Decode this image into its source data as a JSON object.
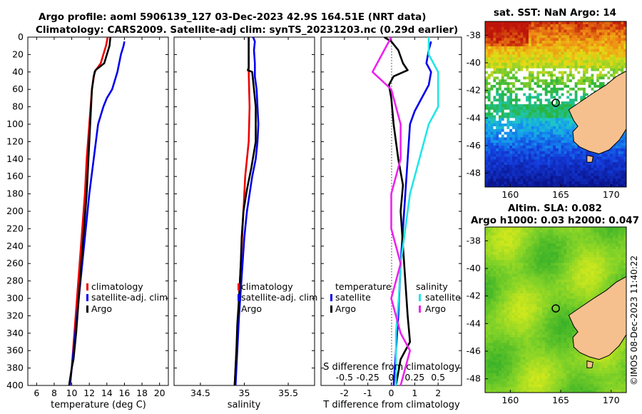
{
  "titles": {
    "line1": "Argo profile: aoml 5906139_127 03-Dec-2023 42.9S 164.51E (NRT data)",
    "line2": "Climatology: CARS2009. Satellite-adj clim: synTS_20231203.nc (0.29d earlier)"
  },
  "stamp": "©IMOS 08-Dec-2023 11:40:22",
  "colors": {
    "red": "#ee0000",
    "blue": "#0000ee",
    "black": "#000000",
    "cyan": "#22e6e6",
    "magenta": "#ee22ee",
    "land": "#f5c08e"
  },
  "chart_data": [
    {
      "type": "line",
      "id": "temperature",
      "xlabel": "temperature (deg C)",
      "ylabel": "",
      "xlim": [
        5,
        21
      ],
      "ylim": [
        0,
        400
      ],
      "xticks": [
        "6",
        "8",
        "10",
        "12",
        "14",
        "16",
        "18",
        "20"
      ],
      "yticks": [
        "0",
        "20",
        "40",
        "60",
        "80",
        "100",
        "120",
        "140",
        "160",
        "180",
        "200",
        "220",
        "240",
        "260",
        "280",
        "300",
        "320",
        "340",
        "360",
        "380",
        "400"
      ],
      "legend": [
        "climatology",
        "satellite-adj. clim",
        "Argo"
      ],
      "series": [
        {
          "name": "climatology",
          "color": "red",
          "points": [
            [
              14.1,
              0
            ],
            [
              13.9,
              10
            ],
            [
              13.6,
              20
            ],
            [
              13.3,
              30
            ],
            [
              12.6,
              40
            ],
            [
              12.3,
              60
            ],
            [
              12.0,
              100
            ],
            [
              11.7,
              140
            ],
            [
              11.5,
              180
            ],
            [
              11.2,
              220
            ],
            [
              10.9,
              260
            ],
            [
              10.6,
              300
            ],
            [
              10.3,
              340
            ],
            [
              10.0,
              380
            ],
            [
              9.8,
              400
            ]
          ]
        },
        {
          "name": "satellite-adj. clim",
          "color": "blue",
          "points": [
            [
              16.0,
              5
            ],
            [
              15.9,
              10
            ],
            [
              15.6,
              20
            ],
            [
              15.2,
              40
            ],
            [
              14.6,
              60
            ],
            [
              14.0,
              70
            ],
            [
              13.6,
              80
            ],
            [
              13.0,
              100
            ],
            [
              12.5,
              140
            ],
            [
              12.0,
              180
            ],
            [
              11.6,
              220
            ],
            [
              11.2,
              260
            ],
            [
              10.8,
              300
            ],
            [
              10.4,
              340
            ],
            [
              10.0,
              380
            ],
            [
              9.8,
              400
            ]
          ]
        },
        {
          "name": "Argo",
          "color": "black",
          "points": [
            [
              14.4,
              0
            ],
            [
              14.3,
              10
            ],
            [
              14.0,
              20
            ],
            [
              13.7,
              30
            ],
            [
              12.7,
              38
            ],
            [
              12.5,
              45
            ],
            [
              12.3,
              60
            ],
            [
              12.1,
              100
            ],
            [
              11.9,
              140
            ],
            [
              11.7,
              180
            ],
            [
              11.4,
              220
            ],
            [
              11.1,
              260
            ],
            [
              10.8,
              300
            ],
            [
              10.5,
              340
            ],
            [
              10.2,
              370
            ],
            [
              10.0,
              380
            ],
            [
              9.7,
              400
            ]
          ]
        }
      ]
    },
    {
      "type": "line",
      "id": "salinity",
      "xlabel": "salinity",
      "ylabel": "",
      "xlim": [
        34.2,
        35.8
      ],
      "ylim": [
        0,
        400
      ],
      "xticks": [
        "34.5",
        "35",
        "35.5"
      ],
      "legend": [
        "climatology",
        "satellite-adj. clim",
        "Argo"
      ],
      "series": [
        {
          "name": "climatology",
          "color": "red",
          "points": [
            [
              35.05,
              0
            ],
            [
              35.05,
              20
            ],
            [
              35.05,
              40
            ],
            [
              35.06,
              80
            ],
            [
              35.05,
              120
            ],
            [
              35.01,
              160
            ],
            [
              34.99,
              200
            ],
            [
              34.97,
              240
            ],
            [
              34.95,
              280
            ],
            [
              34.93,
              320
            ],
            [
              34.91,
              360
            ],
            [
              34.89,
              400
            ]
          ]
        },
        {
          "name": "satellite-adj. clim",
          "color": "blue",
          "points": [
            [
              35.1,
              0
            ],
            [
              35.12,
              5
            ],
            [
              35.11,
              15
            ],
            [
              35.12,
              30
            ],
            [
              35.12,
              45
            ],
            [
              35.14,
              60
            ],
            [
              35.15,
              80
            ],
            [
              35.16,
              100
            ],
            [
              35.15,
              120
            ],
            [
              35.13,
              140
            ],
            [
              35.09,
              160
            ],
            [
              35.06,
              180
            ],
            [
              35.03,
              200
            ],
            [
              35.0,
              230
            ],
            [
              34.98,
              260
            ],
            [
              34.96,
              290
            ],
            [
              34.94,
              320
            ],
            [
              34.92,
              360
            ],
            [
              34.9,
              400
            ]
          ]
        },
        {
          "name": "Argo",
          "color": "black",
          "points": [
            [
              35.05,
              0
            ],
            [
              35.05,
              20
            ],
            [
              35.05,
              35
            ],
            [
              35.04,
              38
            ],
            [
              35.09,
              40
            ],
            [
              35.1,
              50
            ],
            [
              35.13,
              80
            ],
            [
              35.13,
              120
            ],
            [
              35.08,
              150
            ],
            [
              35.03,
              175
            ],
            [
              34.99,
              200
            ],
            [
              34.97,
              230
            ],
            [
              34.96,
              260
            ],
            [
              34.94,
              300
            ],
            [
              34.92,
              330
            ],
            [
              34.91,
              360
            ],
            [
              34.89,
              400
            ]
          ]
        }
      ]
    },
    {
      "type": "line",
      "id": "differences",
      "xlabel": "T difference from climatology",
      "xlabel_top": "S difference from climatology",
      "xlim": [
        -3,
        3
      ],
      "ylim": [
        0,
        400
      ],
      "xticks": [
        "-2",
        "-1",
        "0",
        "1",
        "2"
      ],
      "xticks_top": [
        "-0.5",
        "-0.25",
        "0",
        "0.25",
        "0.5"
      ],
      "legend_left_title": "temperature",
      "legend_right_title": "salinity",
      "legend": [
        "satellite",
        "Argo"
      ],
      "series": [
        {
          "name": "T satellite",
          "color": "blue",
          "points": [
            [
              1.7,
              5
            ],
            [
              1.6,
              15
            ],
            [
              1.5,
              30
            ],
            [
              1.7,
              40
            ],
            [
              1.6,
              55
            ],
            [
              1.3,
              70
            ],
            [
              1.0,
              85
            ],
            [
              0.8,
              100
            ],
            [
              0.7,
              140
            ],
            [
              0.6,
              180
            ],
            [
              0.5,
              220
            ],
            [
              0.4,
              260
            ],
            [
              0.3,
              320
            ],
            [
              0.2,
              360
            ],
            [
              0.1,
              400
            ]
          ]
        },
        {
          "name": "T Argo",
          "color": "black",
          "points": [
            [
              -0.3,
              0
            ],
            [
              0.0,
              5
            ],
            [
              0.3,
              15
            ],
            [
              0.5,
              30
            ],
            [
              0.7,
              38
            ],
            [
              0.1,
              45
            ],
            [
              -0.1,
              55
            ],
            [
              0.0,
              70
            ],
            [
              0.1,
              100
            ],
            [
              0.3,
              140
            ],
            [
              0.5,
              170
            ],
            [
              0.4,
              200
            ],
            [
              0.5,
              240
            ],
            [
              0.6,
              280
            ],
            [
              0.7,
              320
            ],
            [
              0.8,
              350
            ],
            [
              0.4,
              370
            ],
            [
              0.2,
              400
            ]
          ]
        },
        {
          "name": "S satellite",
          "color": "cyan",
          "points": [
            [
              0.4,
              0
            ],
            [
              0.4,
              20
            ],
            [
              0.5,
              40
            ],
            [
              0.5,
              60
            ],
            [
              0.5,
              80
            ],
            [
              0.4,
              100
            ],
            [
              0.3,
              140
            ],
            [
              0.2,
              180
            ],
            [
              0.15,
              220
            ],
            [
              0.1,
              260
            ],
            [
              0.08,
              300
            ],
            [
              0.05,
              340
            ],
            [
              0.05,
              400
            ]
          ]
        },
        {
          "name": "S Argo",
          "color": "magenta",
          "points": [
            [
              0.0,
              0
            ],
            [
              -0.1,
              20
            ],
            [
              -0.2,
              40
            ],
            [
              0.0,
              60
            ],
            [
              0.1,
              100
            ],
            [
              0.1,
              140
            ],
            [
              0.0,
              180
            ],
            [
              0.0,
              220
            ],
            [
              0.1,
              260
            ],
            [
              0.0,
              300
            ],
            [
              0.1,
              340
            ],
            [
              0.2,
              360
            ],
            [
              0.1,
              400
            ]
          ]
        }
      ]
    },
    {
      "type": "heatmap",
      "id": "sst-map",
      "title": "sat. SST: NaN Argo: 14",
      "xlim": [
        157.5,
        171.5
      ],
      "ylim": [
        -49,
        -37
      ],
      "xticks": [
        "160",
        "165",
        "170"
      ],
      "yticks": [
        "-38",
        "-40",
        "-42",
        "-44",
        "-46",
        "-48"
      ],
      "float_position": [
        164.51,
        -42.9
      ]
    },
    {
      "type": "heatmap",
      "id": "sla-map",
      "title": "Altim. SLA: 0.082",
      "subtitle": "Argo h1000: 0.03 h2000: 0.047",
      "xlim": [
        157.5,
        171.5
      ],
      "ylim": [
        -49,
        -37
      ],
      "xticks": [
        "160",
        "165",
        "170"
      ],
      "yticks": [
        "-38",
        "-40",
        "-42",
        "-44",
        "-46",
        "-48"
      ],
      "float_position": [
        164.51,
        -42.9
      ]
    }
  ]
}
